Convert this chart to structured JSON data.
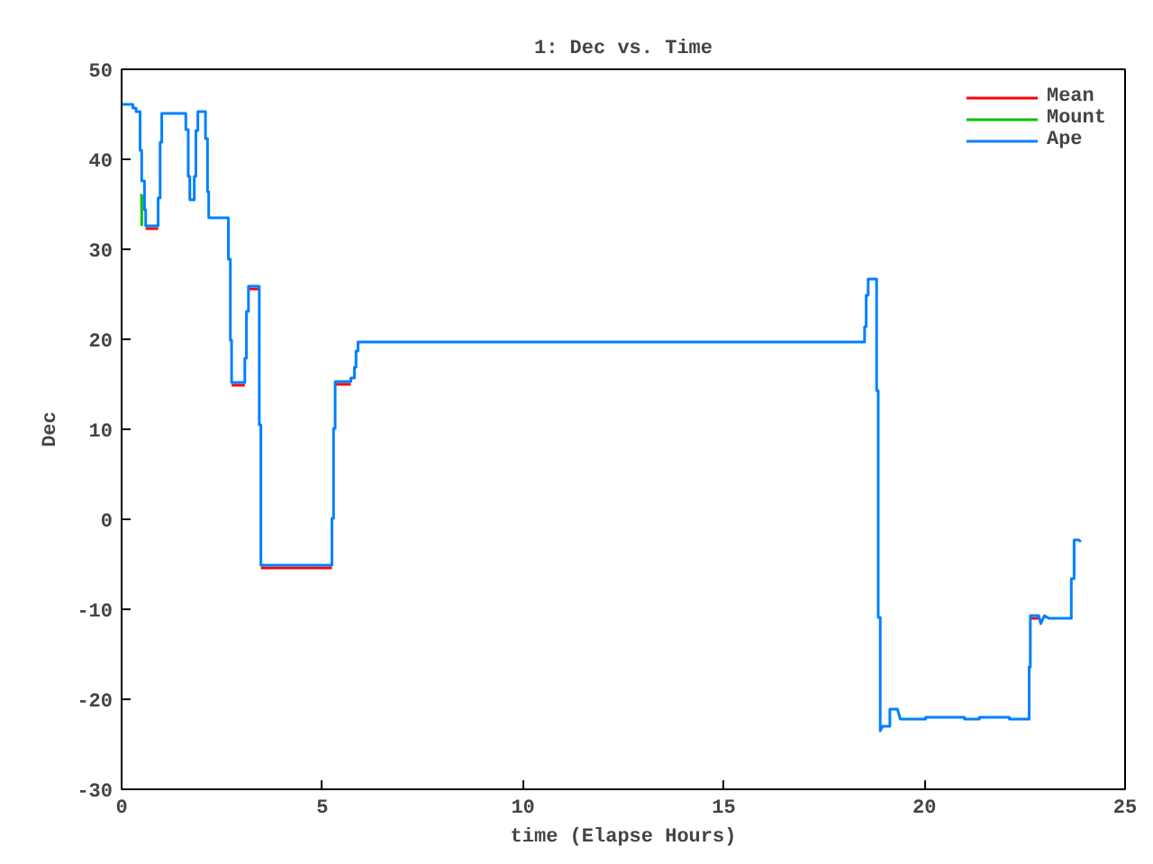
{
  "chart_data": {
    "type": "line",
    "title": "1: Dec vs. Time",
    "xlabel": "time (Elapse Hours)",
    "ylabel": "Dec",
    "x": [
      0,
      0.28,
      0.28,
      0.36,
      0.36,
      0.46,
      0.46,
      0.5,
      0.5,
      0.57,
      0.57,
      0.6,
      0.6,
      0.91,
      0.91,
      0.96,
      0.96,
      1.0,
      1.0,
      1.6,
      1.6,
      1.66,
      1.66,
      1.7,
      1.7,
      1.81,
      1.81,
      1.85,
      1.85,
      1.9,
      1.9,
      2.09,
      2.09,
      2.14,
      2.14,
      2.17,
      2.17,
      2.66,
      2.66,
      2.71,
      2.71,
      2.74,
      2.74,
      3.07,
      3.07,
      3.11,
      3.11,
      3.16,
      3.16,
      3.43,
      3.43,
      3.47,
      3.47,
      5.24,
      5.24,
      5.28,
      5.28,
      5.32,
      5.32,
      5.71,
      5.71,
      5.8,
      5.8,
      5.84,
      5.84,
      5.89,
      5.89,
      18.51,
      18.51,
      18.55,
      18.55,
      18.6,
      18.6,
      18.81,
      18.81,
      18.85,
      18.85,
      18.9,
      18.9,
      18.96,
      19.04,
      19.14,
      19.14,
      19.33,
      19.4,
      20.03,
      20.03,
      21.0,
      21.0,
      21.37,
      21.37,
      22.12,
      22.12,
      22.61,
      22.61,
      22.64,
      22.64,
      22.85,
      22.9,
      22.99,
      23.1,
      23.66,
      23.66,
      23.73,
      23.73,
      23.85,
      23.9
    ],
    "series": [
      {
        "name": "Mean",
        "color": "#ff0000",
        "values": [
          null,
          null,
          null,
          null,
          null,
          null,
          null,
          null,
          null,
          null,
          null,
          null,
          32.3,
          32.3,
          null,
          null,
          null,
          null,
          null,
          null,
          null,
          null,
          null,
          null,
          null,
          null,
          null,
          null,
          null,
          null,
          null,
          null,
          null,
          null,
          null,
          null,
          null,
          null,
          null,
          null,
          null,
          null,
          14.9,
          14.9,
          null,
          null,
          null,
          null,
          25.6,
          25.6,
          null,
          null,
          -5.4,
          -5.4,
          null,
          null,
          null,
          null,
          15.0,
          15.0,
          null,
          null,
          null,
          null,
          null,
          null,
          null,
          null,
          null,
          null,
          null,
          null,
          null,
          null,
          null,
          null,
          null,
          null,
          null,
          null,
          null,
          null,
          null,
          null,
          null,
          null,
          null,
          null,
          null,
          null,
          null,
          null,
          null,
          null,
          null,
          null,
          -11.0,
          -11.0,
          null,
          null,
          null,
          null,
          null,
          null,
          null,
          null,
          null
        ]
      },
      {
        "name": "Mount",
        "color": "#00c000",
        "values": [
          null,
          null,
          null,
          null,
          null,
          null,
          36,
          36,
          32.6,
          null,
          null,
          null,
          null,
          null,
          null,
          null,
          null,
          null,
          null,
          null,
          null,
          null,
          null,
          null,
          null,
          null,
          null,
          null,
          null,
          null,
          null,
          null,
          null,
          null,
          null,
          null,
          null,
          null,
          null,
          null,
          null,
          null,
          null,
          null,
          null,
          null,
          null,
          null,
          null,
          null,
          null,
          null,
          null,
          null,
          null,
          null,
          null,
          null,
          null,
          null,
          null,
          null,
          null,
          null,
          null,
          null,
          null,
          null,
          null,
          null,
          null,
          null,
          null,
          null,
          null,
          null,
          null,
          null,
          null,
          null,
          null,
          null,
          null,
          null,
          null,
          null,
          null,
          null,
          null,
          null,
          null,
          null,
          null,
          null,
          null,
          null,
          null,
          null,
          null,
          null,
          null,
          null,
          null,
          null,
          null,
          null,
          null
        ]
      },
      {
        "name": "Ape",
        "color": "#0080ff",
        "values": [
          46.1,
          46.1,
          45.7,
          45.7,
          45.3,
          45.3,
          41,
          41,
          37.6,
          37.6,
          34.4,
          34.4,
          32.6,
          32.6,
          35.7,
          35.7,
          41.9,
          41.9,
          45.1,
          45.1,
          43.3,
          43.3,
          38.1,
          38.1,
          35.5,
          35.5,
          38.1,
          38.1,
          43.2,
          43.2,
          45.3,
          45.3,
          42.3,
          42.3,
          36.4,
          36.4,
          33.5,
          33.5,
          28.9,
          28.9,
          19.9,
          19.9,
          15.2,
          15.2,
          17.9,
          17.9,
          23.1,
          23.1,
          25.9,
          25.9,
          10.5,
          10.5,
          -5.1,
          -5.1,
          0.1,
          0.1,
          10.1,
          10.1,
          15.3,
          15.3,
          15.7,
          15.7,
          16.9,
          16.9,
          18.7,
          18.7,
          19.7,
          19.7,
          21.4,
          21.4,
          24.9,
          24.9,
          26.7,
          26.7,
          14.3,
          14.3,
          -10.9,
          -10.9,
          -23.5,
          -23.0,
          -23.0,
          -23.0,
          -21.1,
          -21.1,
          -22.2,
          -22.2,
          -22.0,
          -22.0,
          -22.2,
          -22.2,
          -22.0,
          -22.0,
          -22.2,
          -22.2,
          -16.4,
          -16.4,
          -10.7,
          -10.7,
          -11.6,
          -10.7,
          -11.0,
          -11.0,
          -6.6,
          -6.6,
          -2.3,
          -2.3,
          -2.5
        ]
      }
    ],
    "xlim": [
      0,
      25
    ],
    "ylim": [
      -30,
      50
    ],
    "xticks": [
      0,
      5,
      10,
      15,
      20,
      25
    ],
    "yticks": [
      -30,
      -20,
      -10,
      0,
      10,
      20,
      30,
      40,
      50
    ],
    "grid": false,
    "legend": "top right",
    "marker": "none",
    "line_style": "solid"
  }
}
